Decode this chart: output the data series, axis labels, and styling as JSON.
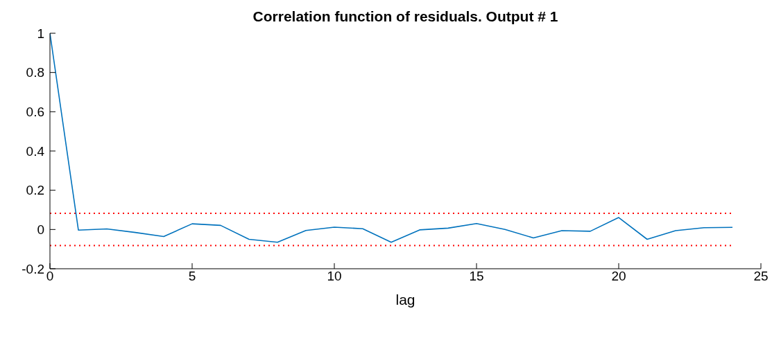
{
  "chart_data": {
    "type": "line",
    "title": "Correlation function of residuals. Output # 1",
    "xlabel": "lag",
    "x": [
      0,
      1,
      2,
      3,
      4,
      5,
      6,
      7,
      8,
      9,
      10,
      11,
      12,
      13,
      14,
      15,
      16,
      17,
      18,
      19,
      20,
      21,
      22,
      23,
      24
    ],
    "series": [
      {
        "color": "#0072bd",
        "values": [
          1,
          -0.003,
          0.003,
          -0.015,
          -0.036,
          0.029,
          0.021,
          -0.05,
          -0.065,
          -0.005,
          0.012,
          0.004,
          -0.065,
          -0.002,
          0.007,
          0.03,
          0,
          -0.043,
          -0.006,
          -0.009,
          0.061,
          -0.05,
          -0.006,
          0.009,
          0.011
        ]
      }
    ],
    "xlim": [
      0,
      25
    ],
    "xticks": [
      0,
      5,
      10,
      15,
      20,
      25
    ],
    "ylim": [
      -0.2,
      1
    ],
    "yticks": [
      -0.2,
      0,
      0.2,
      0.4,
      0.6,
      0.8,
      1
    ],
    "ref_lines": [
      {
        "axis": "y",
        "value": 0.082,
        "color": "#ff0000",
        "line_style": "dotted"
      },
      {
        "axis": "y",
        "value": -0.082,
        "color": "#ff0000",
        "line_style": "dotted"
      }
    ],
    "grid": false,
    "legend": false,
    "marker": "none"
  }
}
